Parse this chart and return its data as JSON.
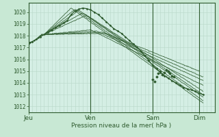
{
  "background_color": "#c8e8d4",
  "plot_bg_color": "#d4eee4",
  "grid_color_minor": "#b8d8c8",
  "grid_color_major": "#98c8a8",
  "line_color": "#2d5a2d",
  "ylim": [
    1011.5,
    1020.8
  ],
  "yticks": [
    1012,
    1013,
    1014,
    1015,
    1016,
    1017,
    1018,
    1019,
    1020
  ],
  "days": [
    "Jeu",
    "Ven",
    "Sam",
    "Dim"
  ],
  "day_positions": [
    0,
    32,
    64,
    88
  ],
  "xlim": [
    0,
    96
  ],
  "xlabel": "Pression niveau de la mer( hPa )",
  "convergence_x": 8,
  "convergence_y": 1018.1
}
